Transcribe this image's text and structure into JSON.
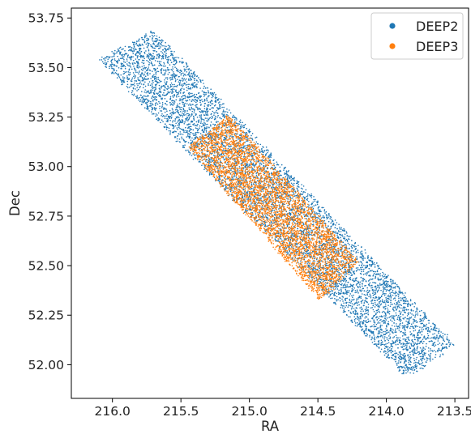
{
  "chart_data": {
    "type": "scatter",
    "title": "",
    "xlabel": "RA",
    "ylabel": "Dec",
    "xlim": [
      216.3,
      213.4
    ],
    "ylim": [
      51.83,
      53.8
    ],
    "x_inverted": true,
    "grid": false,
    "legend_position": "top-right",
    "x_ticks": [
      216.0,
      215.5,
      215.0,
      214.5,
      214.0,
      213.5
    ],
    "x_tick_labels": [
      "216.0",
      "215.5",
      "215.0",
      "214.5",
      "214.0",
      "213.5"
    ],
    "y_ticks": [
      52.0,
      52.25,
      52.5,
      52.75,
      53.0,
      53.25,
      53.5,
      53.75
    ],
    "y_tick_labels": [
      "52.00",
      "52.25",
      "52.50",
      "52.75",
      "53.00",
      "53.25",
      "53.50",
      "53.75"
    ],
    "series": [
      {
        "name": "DEEP2",
        "color": "#1f77b4",
        "region": {
          "corners": [
            [
              216.1,
              53.54
            ],
            [
              215.7,
              53.69
            ],
            [
              213.5,
              52.1
            ],
            [
              213.85,
              51.93
            ]
          ],
          "approx_count": 7000
        }
      },
      {
        "name": "DEEP3",
        "color": "#ff7f0e",
        "region": {
          "corners": [
            [
              215.45,
              53.1
            ],
            [
              215.15,
              53.26
            ],
            [
              214.2,
              52.52
            ],
            [
              214.48,
              52.32
            ]
          ],
          "approx_count": 4200
        }
      }
    ]
  }
}
